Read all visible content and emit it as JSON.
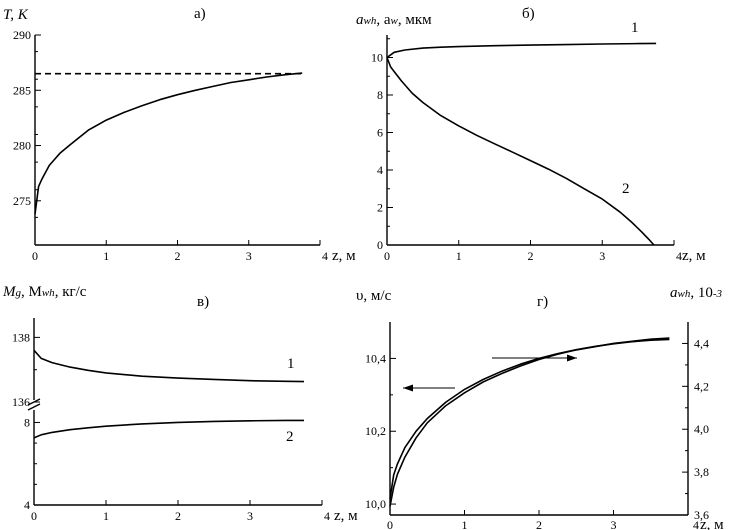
{
  "chart_data": [
    {
      "panel": "а)",
      "type": "line",
      "ylabel": "T, K",
      "xlabel": "z, м",
      "xlim": [
        0,
        4
      ],
      "ylim": [
        271,
        290
      ],
      "xticks": [
        "0",
        "1",
        "2",
        "3",
        "4"
      ],
      "yticks": [
        "275",
        "280",
        "285",
        "290"
      ],
      "series": [
        {
          "values_x": [
            0,
            0.05,
            0.1,
            0.2,
            0.35,
            0.5,
            0.75,
            1.0,
            1.25,
            1.5,
            1.75,
            2.0,
            2.25,
            2.5,
            2.75,
            3.0,
            3.25,
            3.5,
            3.75
          ],
          "values_y": [
            273.8,
            276.3,
            277.0,
            278.2,
            279.3,
            280.1,
            281.4,
            282.3,
            283.0,
            283.6,
            284.15,
            284.6,
            285.0,
            285.35,
            285.7,
            285.95,
            286.2,
            286.4,
            286.55
          ],
          "style": "solid"
        },
        {
          "values_x": [
            0,
            3.75
          ],
          "values_y": [
            286.5,
            286.5
          ],
          "style": "dashed"
        }
      ]
    },
    {
      "panel": "б)",
      "type": "line",
      "ylabel_parts": [
        "a",
        "wh",
        ", a",
        "w",
        ", мкм"
      ],
      "xlabel": "z, м",
      "xlim": [
        0,
        4
      ],
      "ylim": [
        0,
        11.2
      ],
      "xticks": [
        "0",
        "1",
        "2",
        "3",
        "4"
      ],
      "yticks": [
        "0",
        "2",
        "4",
        "6",
        "8",
        "10"
      ],
      "series": [
        {
          "label": "1",
          "values_x": [
            0,
            0.1,
            0.25,
            0.5,
            0.75,
            1.0,
            1.5,
            2.0,
            2.5,
            3.0,
            3.5,
            3.75
          ],
          "values_y": [
            10.0,
            10.28,
            10.4,
            10.5,
            10.55,
            10.58,
            10.63,
            10.66,
            10.69,
            10.72,
            10.74,
            10.75
          ]
        },
        {
          "label": "2",
          "values_x": [
            0,
            0.05,
            0.1,
            0.2,
            0.35,
            0.5,
            0.75,
            1.0,
            1.25,
            1.5,
            1.75,
            2.0,
            2.25,
            2.5,
            2.75,
            3.0,
            3.25,
            3.4,
            3.55,
            3.65,
            3.72
          ],
          "values_y": [
            10.0,
            9.5,
            9.25,
            8.75,
            8.1,
            7.6,
            6.9,
            6.35,
            5.85,
            5.4,
            4.95,
            4.5,
            4.05,
            3.55,
            3.0,
            2.45,
            1.75,
            1.25,
            0.7,
            0.3,
            0.0
          ]
        }
      ]
    },
    {
      "panel": "в)",
      "type": "line",
      "ylabel_parts": [
        "M",
        "g",
        ", M",
        "wh",
        ", кг/с"
      ],
      "xlabel": "z, м",
      "xlim": [
        0,
        4
      ],
      "broken_axis": true,
      "upper_ylim": [
        136,
        138.6
      ],
      "lower_ylim": [
        4,
        8.7
      ],
      "xticks": [
        "0",
        "1",
        "2",
        "3",
        "4"
      ],
      "upper_yticks": [
        "136",
        "138"
      ],
      "lower_yticks": [
        "4",
        "8"
      ],
      "series": [
        {
          "label": "1",
          "segment": "upper",
          "values_x": [
            0,
            0.1,
            0.25,
            0.5,
            0.75,
            1.0,
            1.5,
            2.0,
            2.5,
            3.0,
            3.5,
            3.75
          ],
          "values_y": [
            137.6,
            137.35,
            137.22,
            137.08,
            136.98,
            136.9,
            136.8,
            136.74,
            136.7,
            136.66,
            136.64,
            136.63
          ]
        },
        {
          "label": "2",
          "segment": "lower",
          "values_x": [
            0,
            0.1,
            0.25,
            0.5,
            0.75,
            1.0,
            1.5,
            2.0,
            2.5,
            3.0,
            3.5,
            3.75
          ],
          "values_y": [
            7.25,
            7.4,
            7.52,
            7.65,
            7.74,
            7.82,
            7.93,
            8.0,
            8.05,
            8.08,
            8.1,
            8.1
          ]
        }
      ]
    },
    {
      "panel": "г)",
      "type": "line",
      "ylabel": "υ, м/с",
      "ylabel_right_parts": [
        "a",
        "wh",
        ", 10",
        "-3"
      ],
      "xlabel": "z, м",
      "xlim": [
        0,
        4
      ],
      "ylim": [
        9.97,
        10.5
      ],
      "ylim_right": [
        3.6,
        4.5
      ],
      "xticks": [
        "0",
        "1",
        "2",
        "3",
        "4"
      ],
      "yticks": [
        "10,0",
        "10,2",
        "10,4"
      ],
      "yticks_right": [
        "3,6",
        "3,8",
        "4,0",
        "4,2",
        "4,4"
      ],
      "series": [
        {
          "axis": "left",
          "values_x": [
            0,
            0.05,
            0.1,
            0.2,
            0.35,
            0.5,
            0.75,
            1.0,
            1.25,
            1.5,
            1.75,
            2.0,
            2.25,
            2.5,
            2.75,
            3.0,
            3.25,
            3.5,
            3.75
          ],
          "values_y": [
            10.015,
            10.08,
            10.11,
            10.155,
            10.2,
            10.235,
            10.28,
            10.315,
            10.342,
            10.365,
            10.384,
            10.4,
            10.413,
            10.424,
            10.433,
            10.44,
            10.446,
            10.45,
            10.452
          ]
        },
        {
          "axis": "right",
          "values_x": [
            0,
            0.05,
            0.1,
            0.2,
            0.35,
            0.5,
            0.75,
            1.0,
            1.25,
            1.5,
            1.75,
            2.0,
            2.25,
            2.5,
            2.75,
            3.0,
            3.25,
            3.5,
            3.75
          ],
          "values_y": [
            3.64,
            3.73,
            3.79,
            3.87,
            3.96,
            4.03,
            4.11,
            4.17,
            4.22,
            4.26,
            4.295,
            4.325,
            4.35,
            4.37,
            4.385,
            4.4,
            4.41,
            4.42,
            4.425
          ]
        }
      ]
    }
  ]
}
